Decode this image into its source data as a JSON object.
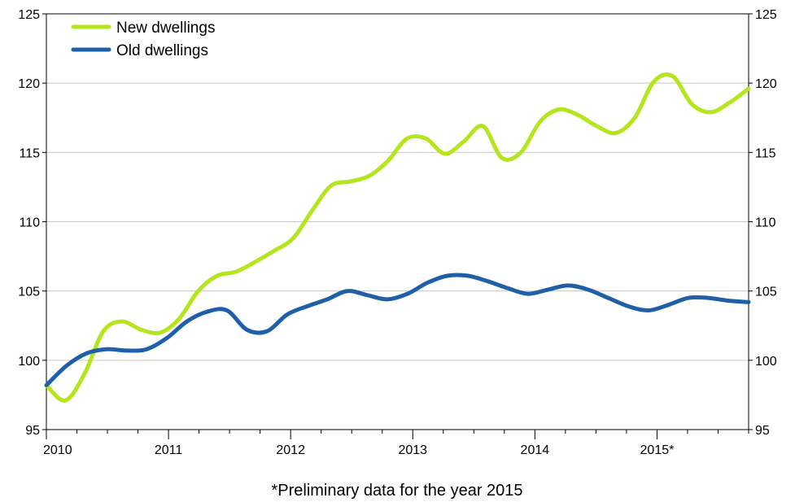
{
  "chart_data": {
    "type": "line",
    "title": "",
    "xlabel": "*Preliminary data for the year 2015",
    "ylabel": "",
    "ylim": [
      95,
      125
    ],
    "y_ticks": [
      95,
      100,
      105,
      110,
      115,
      120,
      125
    ],
    "x_tick_labels": [
      "2010",
      "2011",
      "2012",
      "2013",
      "2014",
      "2015*"
    ],
    "grid": "horizontal",
    "legend_position": "top-left",
    "x_step": "quarter",
    "x_start": "2010",
    "series": [
      {
        "name": "New dwellings",
        "color": "#b5e51d",
        "values": [
          98.2,
          97.1,
          99.0,
          102.1,
          102.8,
          102.2,
          102.0,
          103.0,
          105.0,
          106.1,
          106.4,
          107.1,
          107.9,
          108.8,
          110.8,
          112.6,
          112.9,
          113.3,
          114.4,
          116.0,
          116.0,
          114.9,
          115.8,
          116.9,
          114.6,
          115.0,
          117.2,
          118.1,
          117.7,
          116.9,
          116.4,
          117.5,
          120.1,
          120.5,
          118.5,
          117.9,
          118.6,
          119.6
        ]
      },
      {
        "name": "Old dwellings",
        "color": "#1f5fa8",
        "values": [
          98.2,
          99.6,
          100.5,
          100.8,
          100.7,
          100.8,
          101.6,
          102.8,
          103.5,
          103.6,
          102.2,
          102.1,
          103.3,
          103.9,
          104.4,
          105.0,
          104.7,
          104.4,
          104.8,
          105.6,
          106.1,
          106.1,
          105.7,
          105.2,
          104.8,
          105.1,
          105.4,
          105.1,
          104.5,
          103.9,
          103.6,
          104.0,
          104.5,
          104.5,
          104.3,
          104.2
        ]
      }
    ]
  }
}
